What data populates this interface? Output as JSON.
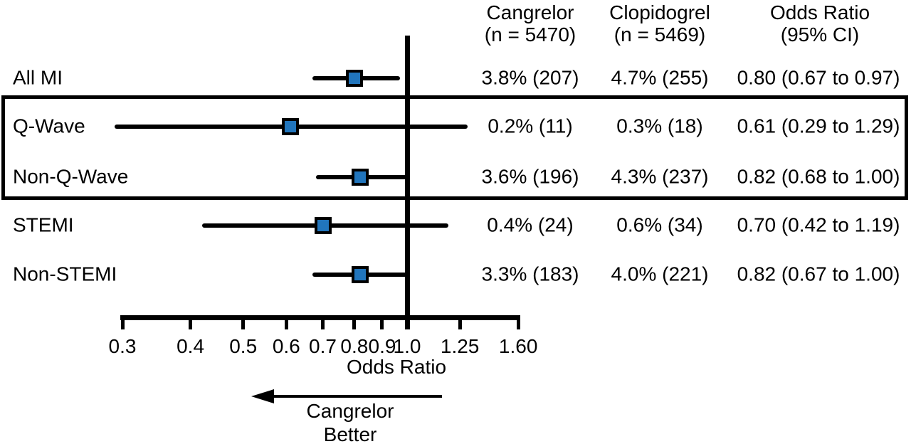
{
  "figure": {
    "columns": {
      "cangrelor": {
        "line1": "Cangrelor",
        "line2": "(n = 5470)"
      },
      "clopidogrel": {
        "line1": "Clopidogrel",
        "line2": "(n = 5469)"
      },
      "odds_ratio": {
        "line1": "Odds Ratio",
        "line2": "(95% CI)"
      }
    },
    "direction_note": {
      "line1": "Cangrelor",
      "line2": "Better"
    }
  },
  "chart_data": {
    "type": "scatter",
    "subtype": "forest-plot",
    "title": "",
    "xlabel": "Odds Ratio",
    "scale": "log",
    "axis": {
      "label": "Odds Ratio",
      "min": 0.3,
      "max": 1.6,
      "reference_line": 1.0,
      "ticks": [
        0.3,
        0.4,
        0.5,
        0.6,
        0.7,
        0.8,
        0.9,
        1.0,
        1.25,
        1.6
      ],
      "tick_labels": [
        "0.3",
        "0.4",
        "0.5",
        "0.6",
        "0.7",
        "0.8",
        "0.9",
        "1.0",
        "1.25",
        "1.60"
      ]
    },
    "marker_color": "#2175bc",
    "line_color": "#000000",
    "rows": [
      {
        "label": "All MI",
        "cangrelor": "3.8% (207)",
        "clopidogrel": "4.7% (255)",
        "or_text": "0.80 (0.67 to 0.97)",
        "or": 0.8,
        "ci_low": 0.67,
        "ci_high": 0.97,
        "highlighted": false
      },
      {
        "label": "Q-Wave",
        "cangrelor": "0.2% (11)",
        "clopidogrel": "0.3% (18)",
        "or_text": "0.61 (0.29 to 1.29)",
        "or": 0.61,
        "ci_low": 0.29,
        "ci_high": 1.29,
        "highlighted": true
      },
      {
        "label": "Non-Q-Wave",
        "cangrelor": "3.6% (196)",
        "clopidogrel": "4.3% (237)",
        "or_text": "0.82 (0.68 to 1.00)",
        "or": 0.82,
        "ci_low": 0.68,
        "ci_high": 1.0,
        "highlighted": true
      },
      {
        "label": "STEMI",
        "cangrelor": "0.4% (24)",
        "clopidogrel": "0.6% (34)",
        "or_text": "0.70 (0.42 to 1.19)",
        "or": 0.7,
        "ci_low": 0.42,
        "ci_high": 1.19,
        "highlighted": false
      },
      {
        "label": "Non-STEMI",
        "cangrelor": "3.3% (183)",
        "clopidogrel": "4.0% (221)",
        "or_text": "0.82 (0.67 to 1.00)",
        "or": 0.82,
        "ci_low": 0.67,
        "ci_high": 1.0,
        "highlighted": false
      }
    ]
  }
}
